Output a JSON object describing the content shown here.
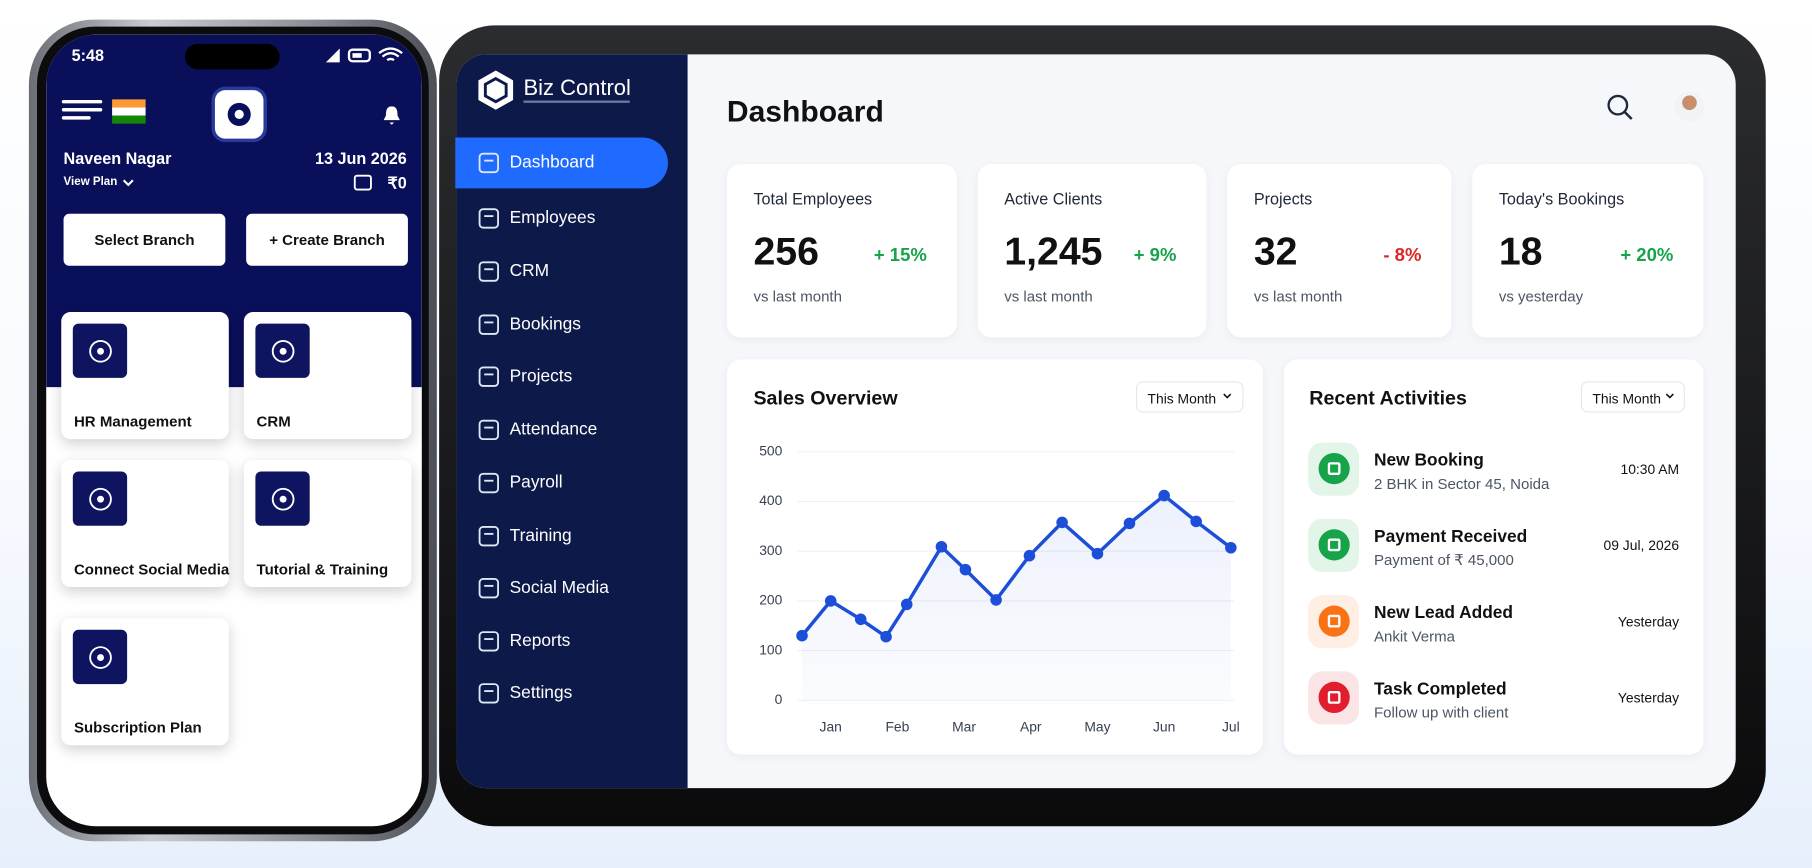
{
  "phone": {
    "status_time": "5:48",
    "user_name": "Naveen Nagar",
    "view_plan": "View Plan",
    "date": "13 Jun 2026",
    "wallet": "₹0",
    "buttons": [
      "Select Branch",
      "+ Create Branch"
    ],
    "tiles": [
      "HR Management",
      "CRM",
      "Connect Social Media",
      "Tutorial & Training",
      "Subscription Plan"
    ]
  },
  "sidebar": {
    "brand": "Biz Control",
    "nav": [
      "Dashboard",
      "Employees",
      "CRM",
      "Bookings",
      "Projects",
      "Attendance",
      "Payroll",
      "Training",
      "Social Media",
      "Reports",
      "Settings"
    ]
  },
  "header": {
    "title": "Dashboard"
  },
  "stats": [
    {
      "label": "Total Employees",
      "value": "256",
      "change": "+ 15%",
      "note": "vs last month",
      "color": "#16a34a"
    },
    {
      "label": "Active Clients",
      "value": "1,245",
      "change": "+ 9%",
      "note": "vs last month",
      "color": "#16a34a"
    },
    {
      "label": "Projects",
      "value": "32",
      "change": "- 8%",
      "note": "vs last month",
      "color": "#dc2626"
    },
    {
      "label": "Today's Bookings",
      "value": "18",
      "change": "+ 20%",
      "note": "vs yesterday",
      "color": "#16a34a"
    }
  ],
  "chart_data": {
    "type": "line",
    "title": "Sales Overview",
    "filter": "This Month",
    "x": [
      0.57,
      1.0,
      1.45,
      1.83,
      2.14,
      2.66,
      3.02,
      3.48,
      3.98,
      4.47,
      5.0,
      5.48,
      6.0,
      6.48,
      7.0
    ],
    "values": [
      130,
      200,
      163,
      128,
      193,
      309,
      263,
      202,
      291,
      358,
      295,
      356,
      412,
      360,
      307
    ],
    "color": "#1d4ed8",
    "xlim": [
      0.5,
      7.05
    ],
    "xticks": [
      {
        "value": 1,
        "label": "Jan"
      },
      {
        "value": 2,
        "label": "Feb"
      },
      {
        "value": 3,
        "label": "Mar"
      },
      {
        "value": 4,
        "label": "Apr"
      },
      {
        "value": 5,
        "label": "May"
      },
      {
        "value": 6,
        "label": "Jun"
      },
      {
        "value": 7,
        "label": "Jul"
      }
    ],
    "ylim": [
      0,
      500
    ],
    "yticks": [
      0,
      100,
      200,
      300,
      400,
      500
    ],
    "grid": true
  },
  "activities": {
    "title": "Recent Activities",
    "filter": "This Month",
    "items": [
      {
        "title": "New Booking",
        "detail": "2 BHK in Sector 45, Noida",
        "time": "10:30 AM",
        "color": "#16a34a"
      },
      {
        "title": "Payment Received",
        "detail": "Payment of ₹ 45,000",
        "time": "09 Jul, 2026",
        "color": "#16a34a"
      },
      {
        "title": "New Lead Added",
        "detail": "Ankit Verma",
        "time": "Yesterday",
        "color": "#f97316"
      },
      {
        "title": "Task Completed",
        "detail": "Follow up with client",
        "time": "Yesterday",
        "color": "#e11d2e"
      }
    ]
  }
}
